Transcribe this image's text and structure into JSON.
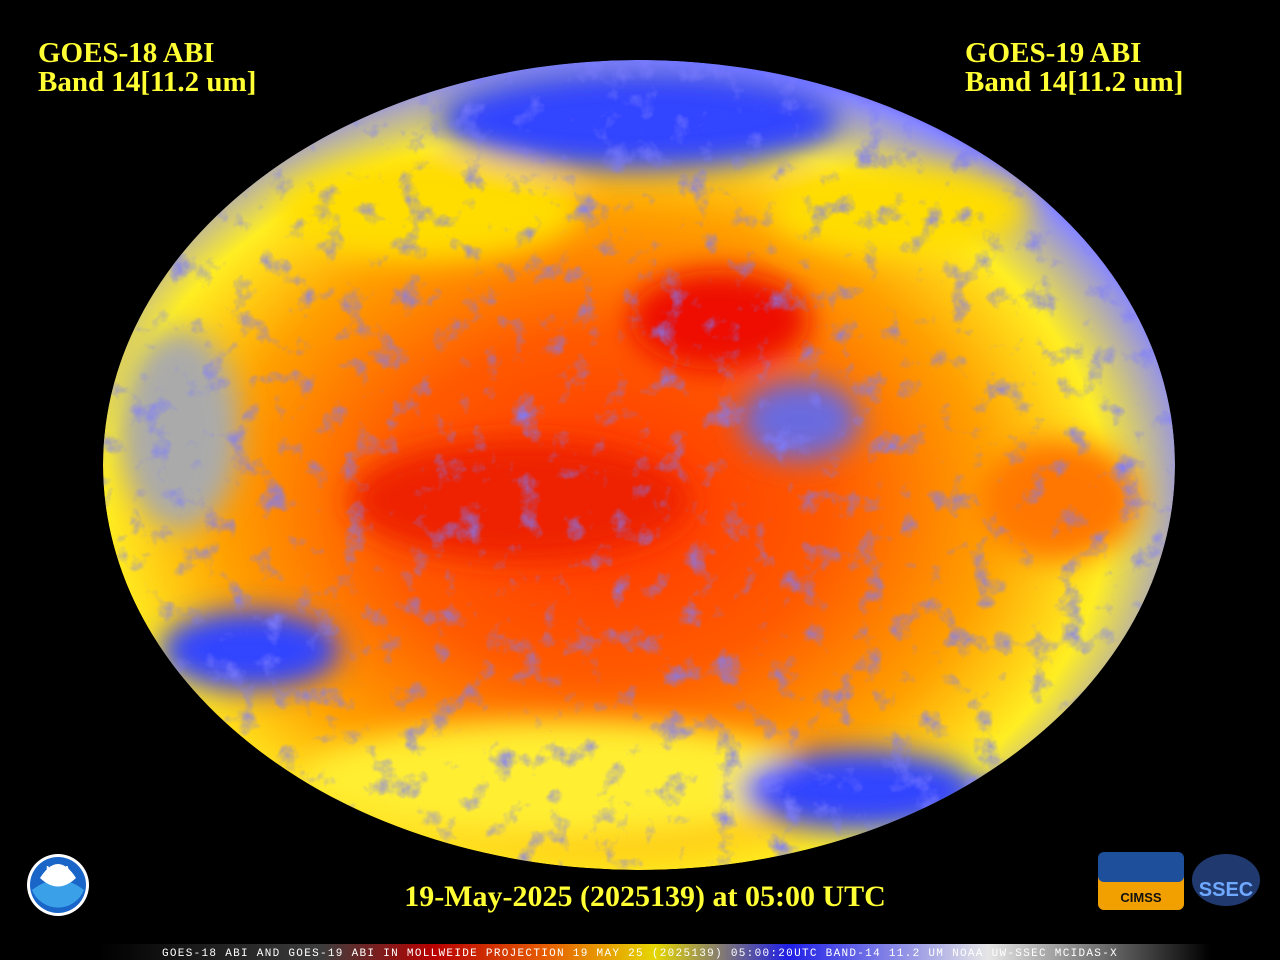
{
  "left_label": {
    "satellite": "GOES-18 ABI",
    "band": "Band 14[11.2 um]"
  },
  "right_label": {
    "satellite": "GOES-19 ABI",
    "band": "Band 14[11.2 um]"
  },
  "timestamp": "19-May-2025 (2025139) at 05:00 UTC",
  "footer": "GOES-18 ABI AND GOES-19 ABI IN MOLLWEIDE PROJECTION 19 MAY 25 (2025139) 05:00:20UTC BAND-14 11.2 UM NOAA UW-SSEC MCIDAS-X",
  "logos": {
    "noaa": "NOAA",
    "cimss": "CIMSS",
    "ssec": "SSEC"
  }
}
